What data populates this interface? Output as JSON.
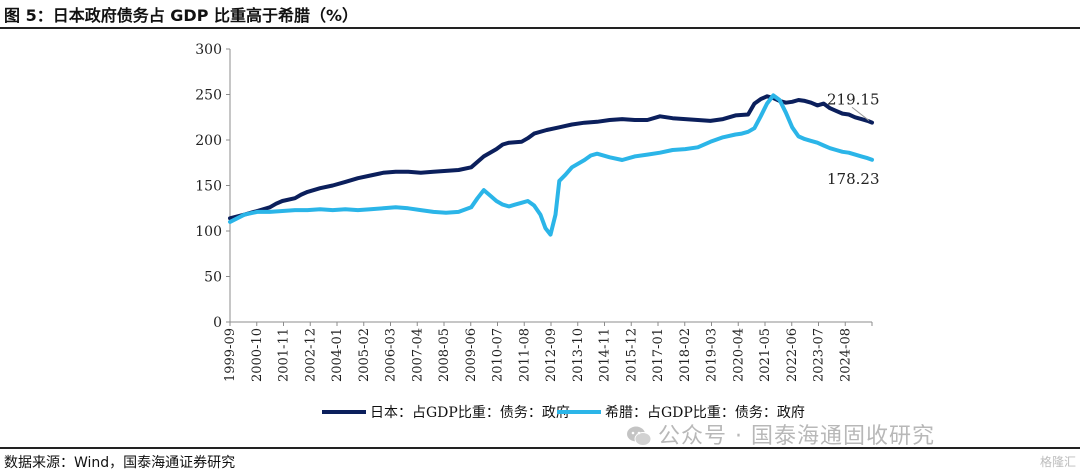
{
  "title": "图 5：日本政府债务占 GDP 比重高于希腊（%）",
  "source": "数据来源：Wind，国泰海通证券研究",
  "watermark": "公众号 · 国泰海通固收研究",
  "corner_mark": "格隆汇",
  "colors": {
    "japan": "#0b1f5c",
    "greece": "#2bb5e8",
    "axis": "#8c8c8c"
  },
  "chart_data": {
    "type": "line",
    "title": "日本政府债务占 GDP 比重高于希腊（%）",
    "ylim": [
      0,
      300
    ],
    "yticks": [
      0,
      50,
      100,
      150,
      200,
      250,
      300
    ],
    "x_range": [
      1999.67,
      2025.17
    ],
    "xticks": [
      "1999-09",
      "2000-10",
      "2001-11",
      "2002-12",
      "2004-01",
      "2005-02",
      "2006-03",
      "2007-04",
      "2008-05",
      "2009-06",
      "2010-07",
      "2011-08",
      "2012-09",
      "2013-10",
      "2014-11",
      "2015-12",
      "2017-01",
      "2018-02",
      "2019-03",
      "2020-04",
      "2021-05",
      "2022-06",
      "2023-07",
      "2024-08"
    ],
    "legend_position": "bottom",
    "grid": false,
    "series": [
      {
        "name": "日本：占GDP比重：债务：政府",
        "color": "#0b1f5c",
        "x": [
          1999.67,
          2000.25,
          2000.75,
          2001.25,
          2001.5,
          2001.75,
          2002.25,
          2002.5,
          2002.75,
          2003.25,
          2003.75,
          2004.25,
          2004.75,
          2005.25,
          2005.75,
          2006.25,
          2006.75,
          2007.25,
          2007.75,
          2008.25,
          2008.75,
          2009.25,
          2009.75,
          2010.25,
          2010.5,
          2010.75,
          2011.25,
          2011.5,
          2011.75,
          2012.25,
          2012.75,
          2013.25,
          2013.75,
          2014.25,
          2014.75,
          2015.25,
          2015.75,
          2016.25,
          2016.75,
          2017.25,
          2017.75,
          2018.25,
          2018.75,
          2019.25,
          2019.75,
          2020.25,
          2020.5,
          2020.75,
          2021.0,
          2021.25,
          2021.5,
          2021.75,
          2022.0,
          2022.25,
          2022.5,
          2022.75,
          2023.0,
          2023.25,
          2023.5,
          2023.75,
          2024.0,
          2024.25,
          2024.5,
          2024.75,
          2025.0,
          2025.17
        ],
        "values": [
          114,
          118,
          122,
          126,
          130,
          133,
          136,
          140,
          143,
          147,
          150,
          154,
          158,
          161,
          164,
          165,
          165,
          164,
          165,
          166,
          167,
          170,
          182,
          190,
          195,
          197,
          198,
          202,
          207,
          211,
          214,
          217,
          219,
          220,
          222,
          223,
          222,
          222,
          226,
          224,
          223,
          222,
          221,
          223,
          227,
          228,
          240,
          245,
          248,
          246,
          243,
          241,
          242,
          244,
          243,
          241,
          238,
          240,
          235,
          232,
          229,
          228,
          225,
          223,
          221,
          219.15
        ]
      },
      {
        "name": "希腊：占GDP比重：债务：政府",
        "color": "#2bb5e8",
        "x": [
          1999.67,
          2000.25,
          2000.75,
          2001.25,
          2001.75,
          2002.25,
          2002.75,
          2003.25,
          2003.75,
          2004.25,
          2004.75,
          2005.25,
          2005.75,
          2006.25,
          2006.75,
          2007.25,
          2007.75,
          2008.25,
          2008.75,
          2009.25,
          2009.5,
          2009.75,
          2010.0,
          2010.25,
          2010.5,
          2010.75,
          2011.0,
          2011.25,
          2011.5,
          2011.75,
          2012.0,
          2012.2,
          2012.4,
          2012.6,
          2012.75,
          2013.0,
          2013.25,
          2013.75,
          2014.0,
          2014.25,
          2014.75,
          2015.25,
          2015.75,
          2016.25,
          2016.75,
          2017.25,
          2017.75,
          2018.25,
          2018.75,
          2019.25,
          2019.75,
          2020.0,
          2020.25,
          2020.5,
          2020.75,
          2021.0,
          2021.25,
          2021.5,
          2021.75,
          2022.0,
          2022.25,
          2022.5,
          2022.75,
          2023.0,
          2023.25,
          2023.5,
          2023.75,
          2024.0,
          2024.25,
          2024.5,
          2024.75,
          2025.0,
          2025.17
        ],
        "values": [
          110,
          118,
          121,
          121,
          122,
          123,
          123,
          124,
          123,
          124,
          123,
          124,
          125,
          126,
          125,
          123,
          121,
          120,
          121,
          126,
          136,
          145,
          139,
          133,
          129,
          127,
          129,
          131,
          133,
          128,
          118,
          103,
          96,
          118,
          155,
          162,
          170,
          178,
          183,
          185,
          181,
          178,
          182,
          184,
          186,
          189,
          190,
          192,
          198,
          203,
          206,
          207,
          209,
          213,
          226,
          240,
          249,
          244,
          230,
          214,
          204,
          201,
          199,
          197,
          194,
          191,
          189,
          187,
          186,
          184,
          182,
          180,
          178.23
        ]
      }
    ],
    "annotations": [
      {
        "text": "219.15",
        "series": "日本：占GDP比重：债务：政府"
      },
      {
        "text": "178.23",
        "series": "希腊：占GDP比重：债务：政府"
      }
    ]
  }
}
